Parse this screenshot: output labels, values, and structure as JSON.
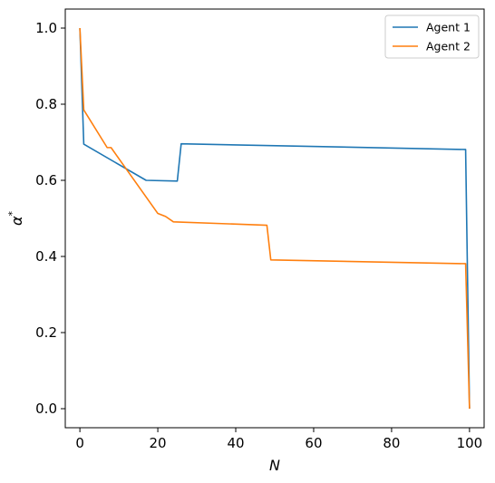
{
  "chart_data": {
    "type": "line",
    "xlabel": "N",
    "ylabel": "α*",
    "xlim": [
      -3.75,
      103.75
    ],
    "ylim": [
      -0.05,
      1.05
    ],
    "xticks": [
      0,
      20,
      40,
      60,
      80,
      100
    ],
    "yticks": [
      0.0,
      0.2,
      0.4,
      0.6,
      0.8,
      1.0
    ],
    "xtick_labels": [
      "0",
      "20",
      "40",
      "60",
      "80",
      "100"
    ],
    "ytick_labels": [
      "0.0",
      "0.2",
      "0.4",
      "0.6",
      "0.8",
      "1.0"
    ],
    "grid": false,
    "legend_position": "top-right",
    "series": [
      {
        "name": "Agent 1",
        "color": "#1f77b4",
        "x": [
          0,
          1,
          17,
          25,
          26,
          99,
          100
        ],
        "y": [
          1.0,
          0.695,
          0.6,
          0.598,
          0.696,
          0.681,
          0.0
        ]
      },
      {
        "name": "Agent 2",
        "color": "#ff7f0e",
        "x": [
          0,
          1,
          7,
          8,
          20,
          22,
          24,
          48,
          49,
          99,
          100
        ],
        "y": [
          1.0,
          0.785,
          0.686,
          0.686,
          0.513,
          0.505,
          0.491,
          0.482,
          0.391,
          0.381,
          0.0
        ]
      }
    ]
  }
}
